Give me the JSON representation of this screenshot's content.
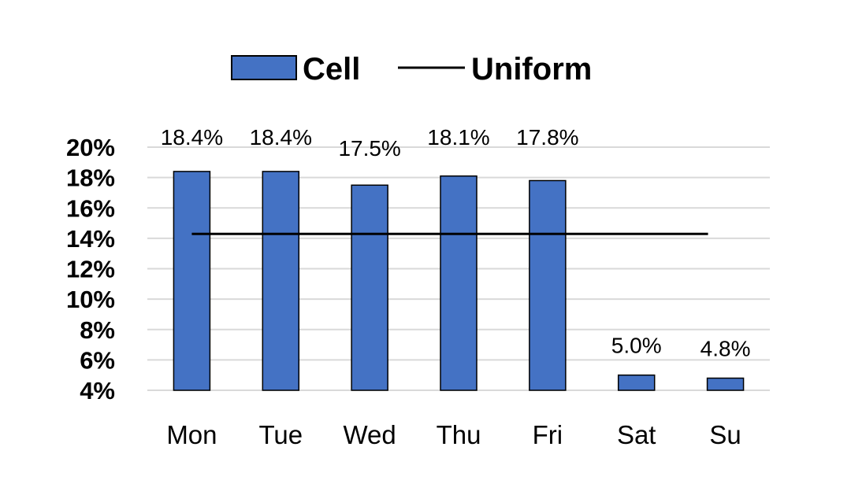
{
  "chart_data": {
    "type": "bar",
    "title": "",
    "xlabel": "",
    "ylabel": "",
    "categories": [
      "Mon",
      "Tue",
      "Wed",
      "Thu",
      "Fri",
      "Sat",
      "Su"
    ],
    "series": [
      {
        "name": "Cell",
        "type": "bar",
        "values": [
          18.4,
          18.4,
          17.5,
          18.1,
          17.8,
          5.0,
          4.8
        ],
        "color": "#4472C4"
      },
      {
        "name": "Uniform",
        "type": "line",
        "values": [
          14.29,
          14.29,
          14.29,
          14.29,
          14.29,
          14.29,
          14.29
        ],
        "color": "#000000"
      }
    ],
    "data_labels": [
      "18.4%",
      "18.4%",
      "17.5%",
      "18.1%",
      "17.8%",
      "5.0%",
      "4.8%"
    ],
    "y_ticks": [
      "4%",
      "6%",
      "8%",
      "10%",
      "12%",
      "14%",
      "16%",
      "18%",
      "20%"
    ],
    "ylim": [
      4,
      20
    ],
    "grid": true,
    "legend_position": "top"
  }
}
